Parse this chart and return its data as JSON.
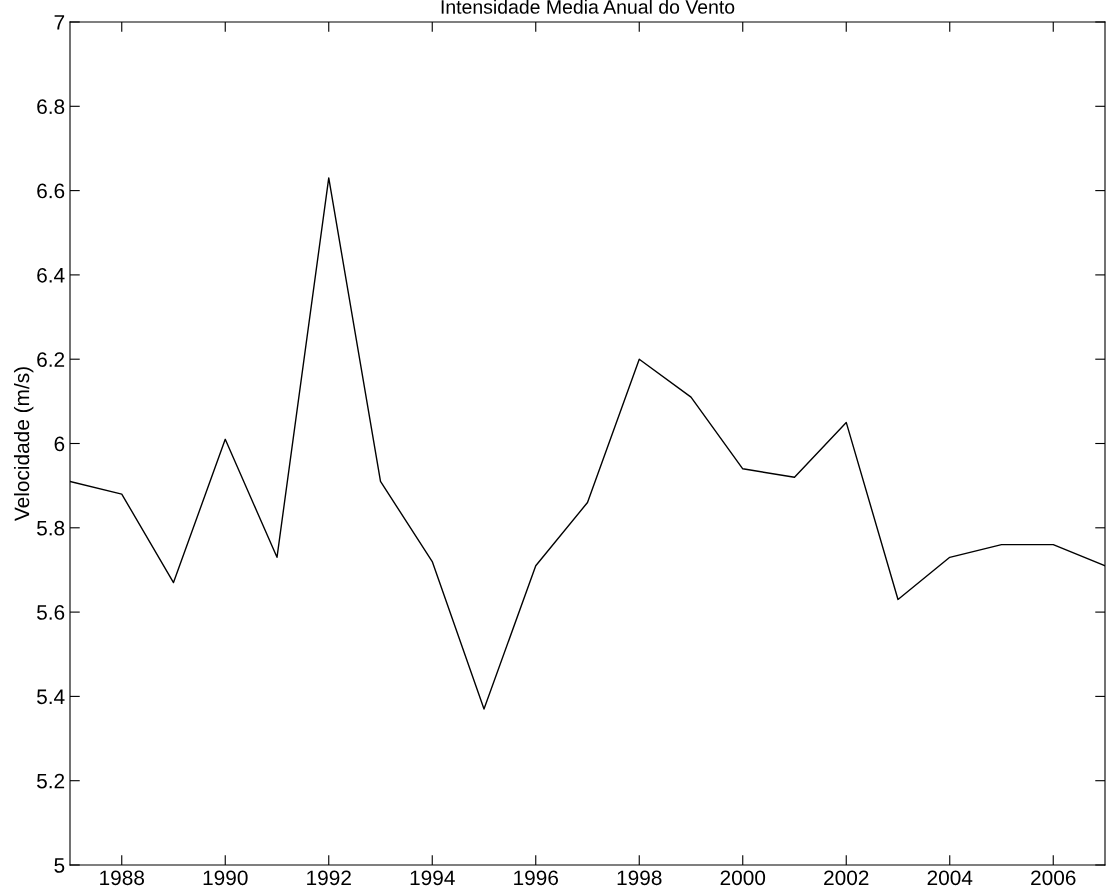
{
  "chart_data": {
    "type": "line",
    "title": "Intensidade Media Anual do Vento",
    "ylabel": "Velocidade (m/s)",
    "x": [
      1987,
      1988,
      1989,
      1990,
      1991,
      1992,
      1993,
      1994,
      1995,
      1996,
      1997,
      1998,
      1999,
      2000,
      2001,
      2002,
      2003,
      2004,
      2005,
      2006,
      2007
    ],
    "series": [
      {
        "color": "#000000",
        "values": [
          5.91,
          5.88,
          5.67,
          6.01,
          5.73,
          6.63,
          5.91,
          5.72,
          5.37,
          5.71,
          5.86,
          6.2,
          6.11,
          5.94,
          5.92,
          6.05,
          5.63,
          5.73,
          5.76,
          5.76,
          5.71
        ]
      }
    ],
    "xlim": [
      1987,
      2007
    ],
    "xticks": [
      1988,
      1990,
      1992,
      1994,
      1996,
      1998,
      2000,
      2002,
      2004,
      2006
    ],
    "ylim": [
      5,
      7
    ],
    "yticks": [
      5,
      5.2,
      5.4,
      5.6,
      5.8,
      6,
      6.2,
      6.4,
      6.6,
      6.8,
      7
    ],
    "grid": false,
    "legend": false,
    "marker": "none",
    "line_style": "solid"
  }
}
